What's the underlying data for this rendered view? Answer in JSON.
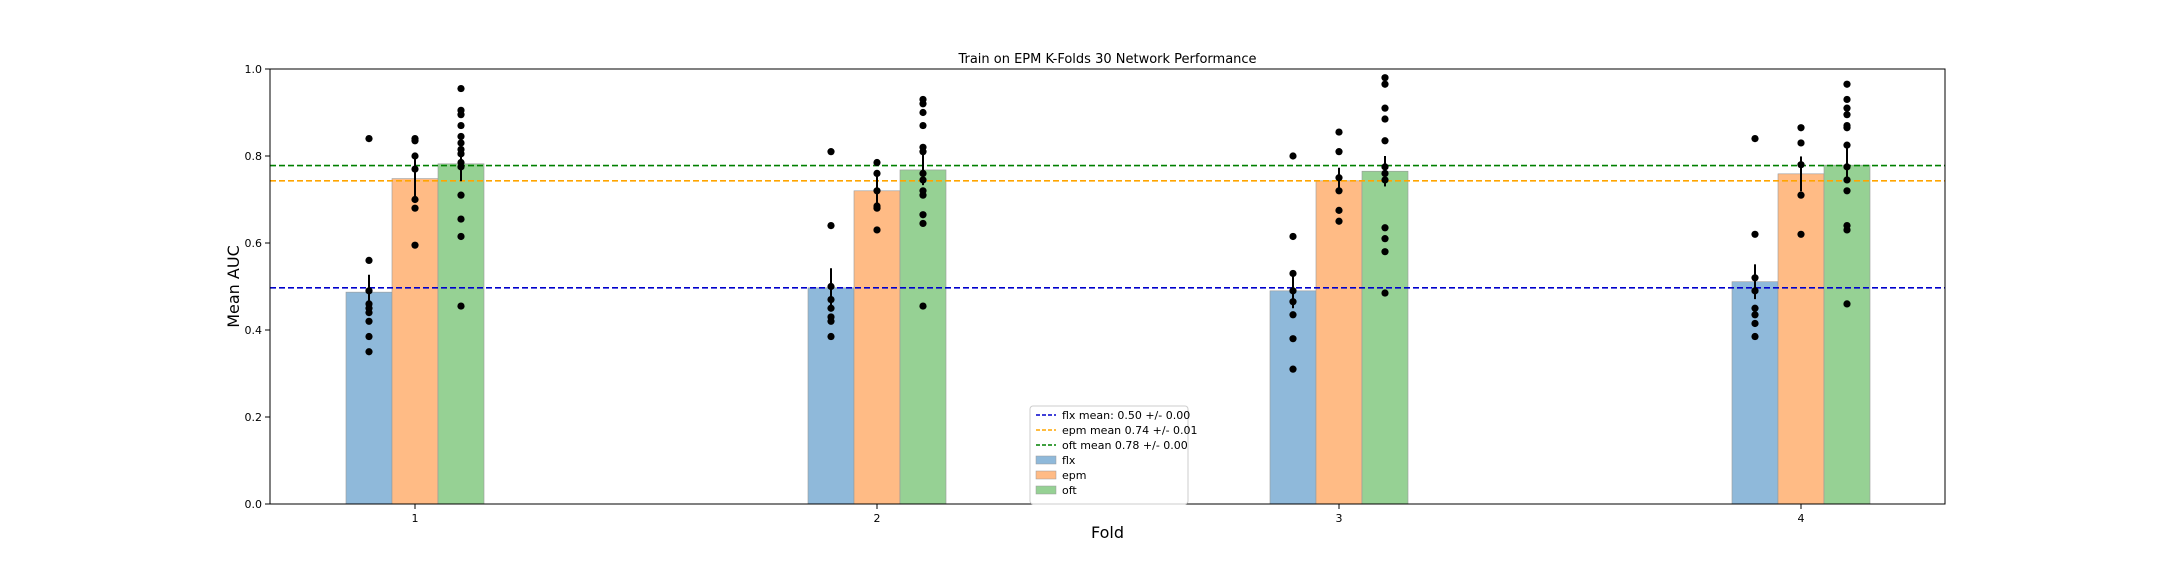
{
  "chart_data": {
    "type": "bar",
    "title": "Train on EPM K-Folds 30 Network Performance",
    "xlabel": "Fold",
    "ylabel": "Mean AUC",
    "categories": [
      "1",
      "2",
      "3",
      "4"
    ],
    "ylim": [
      0.0,
      1.0
    ],
    "yticks": [
      "0.0",
      "0.2",
      "0.4",
      "0.6",
      "0.8",
      "1.0"
    ],
    "grid": false,
    "legend_position": "bottom-center",
    "series": [
      {
        "name": "flx",
        "color": "#8fb9da",
        "values": [
          0.487,
          0.497,
          0.49,
          0.511
        ],
        "errors": [
          0.04,
          0.045,
          0.04,
          0.04
        ],
        "points": [
          [
            0.84,
            0.56,
            0.49,
            0.46,
            0.45,
            0.44,
            0.42,
            0.385,
            0.35
          ],
          [
            0.81,
            0.64,
            0.5,
            0.47,
            0.45,
            0.43,
            0.42,
            0.385
          ],
          [
            0.8,
            0.615,
            0.53,
            0.49,
            0.465,
            0.435,
            0.38,
            0.31
          ],
          [
            0.84,
            0.62,
            0.52,
            0.49,
            0.45,
            0.435,
            0.415,
            0.385
          ]
        ]
      },
      {
        "name": "epm",
        "color": "#ffbb85",
        "values": [
          0.748,
          0.72,
          0.743,
          0.759
        ],
        "errors": [
          0.045,
          0.04,
          0.03,
          0.04
        ],
        "points": [
          [
            0.84,
            0.835,
            0.8,
            0.77,
            0.7,
            0.68,
            0.595
          ],
          [
            0.785,
            0.76,
            0.72,
            0.685,
            0.68,
            0.63
          ],
          [
            0.855,
            0.81,
            0.75,
            0.72,
            0.675,
            0.65
          ],
          [
            0.865,
            0.83,
            0.78,
            0.71,
            0.62
          ]
        ]
      },
      {
        "name": "oft",
        "color": "#96d194",
        "values": [
          0.782,
          0.768,
          0.765,
          0.779
        ],
        "errors": [
          0.04,
          0.035,
          0.035,
          0.04
        ],
        "points": [
          [
            0.955,
            0.905,
            0.895,
            0.87,
            0.845,
            0.83,
            0.815,
            0.805,
            0.785,
            0.775,
            0.71,
            0.655,
            0.615,
            0.455
          ],
          [
            0.93,
            0.92,
            0.9,
            0.87,
            0.82,
            0.81,
            0.76,
            0.745,
            0.72,
            0.71,
            0.665,
            0.645,
            0.455
          ],
          [
            0.98,
            0.965,
            0.91,
            0.885,
            0.835,
            0.775,
            0.76,
            0.745,
            0.635,
            0.61,
            0.58,
            0.485
          ],
          [
            0.965,
            0.93,
            0.91,
            0.895,
            0.87,
            0.865,
            0.825,
            0.775,
            0.745,
            0.72,
            0.64,
            0.63,
            0.46
          ]
        ]
      }
    ],
    "reference_lines": [
      {
        "label": "flx mean: 0.50 +/- 0.00",
        "value": 0.497,
        "color": "#0000cc"
      },
      {
        "label": "epm mean 0.74 +/- 0.01",
        "value": 0.743,
        "color": "#ffa500"
      },
      {
        "label": "oft mean 0.78 +/- 0.00",
        "value": 0.778,
        "color": "#008000"
      }
    ]
  }
}
